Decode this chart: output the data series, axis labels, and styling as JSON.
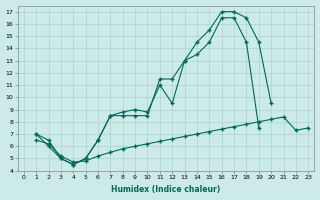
{
  "xlabel": "Humidex (Indice chaleur)",
  "ylabel": "",
  "bg_color": "#cceae7",
  "grid_color": "#aad4d0",
  "line_color": "#006858",
  "xlim": [
    -0.5,
    23.5
  ],
  "ylim": [
    4,
    17.5
  ],
  "xticks": [
    0,
    1,
    2,
    3,
    4,
    5,
    6,
    7,
    8,
    9,
    10,
    11,
    12,
    13,
    14,
    15,
    16,
    17,
    18,
    19,
    20,
    21,
    22,
    23
  ],
  "yticks": [
    4,
    5,
    6,
    7,
    8,
    9,
    10,
    11,
    12,
    13,
    14,
    15,
    16,
    17
  ],
  "line1_x": [
    1,
    2,
    3,
    4,
    5,
    6,
    7,
    8,
    9,
    10,
    11,
    12,
    13,
    14,
    15,
    16,
    17,
    18,
    19,
    20
  ],
  "line1_y": [
    7,
    6,
    5,
    4.5,
    5,
    6.5,
    8.5,
    8.5,
    8.5,
    8.5,
    11.5,
    11.5,
    13,
    14.5,
    15.5,
    17,
    17,
    16.5,
    14.5,
    9.5
  ],
  "line2_x": [
    1,
    2,
    3,
    4,
    5,
    6,
    7,
    8,
    9,
    10,
    11,
    12,
    13,
    14,
    15,
    16,
    17,
    18,
    19
  ],
  "line2_y": [
    7,
    6.5,
    5,
    4.5,
    5,
    6.5,
    8.5,
    8.8,
    9,
    8.8,
    11,
    9.5,
    13,
    13.5,
    14.5,
    16.5,
    16.5,
    14.5,
    7.5
  ],
  "line3_x": [
    1,
    2,
    3,
    4,
    5,
    6,
    7,
    8,
    9,
    10,
    11,
    12,
    13,
    14,
    15,
    16,
    17,
    18,
    19,
    20,
    21,
    22,
    23
  ],
  "line3_y": [
    6.5,
    6.2,
    5.2,
    4.7,
    4.8,
    5.2,
    5.5,
    5.8,
    6.0,
    6.2,
    6.4,
    6.6,
    6.8,
    7.0,
    7.2,
    7.4,
    7.6,
    7.8,
    8.0,
    8.2,
    8.4,
    7.3,
    7.5
  ]
}
